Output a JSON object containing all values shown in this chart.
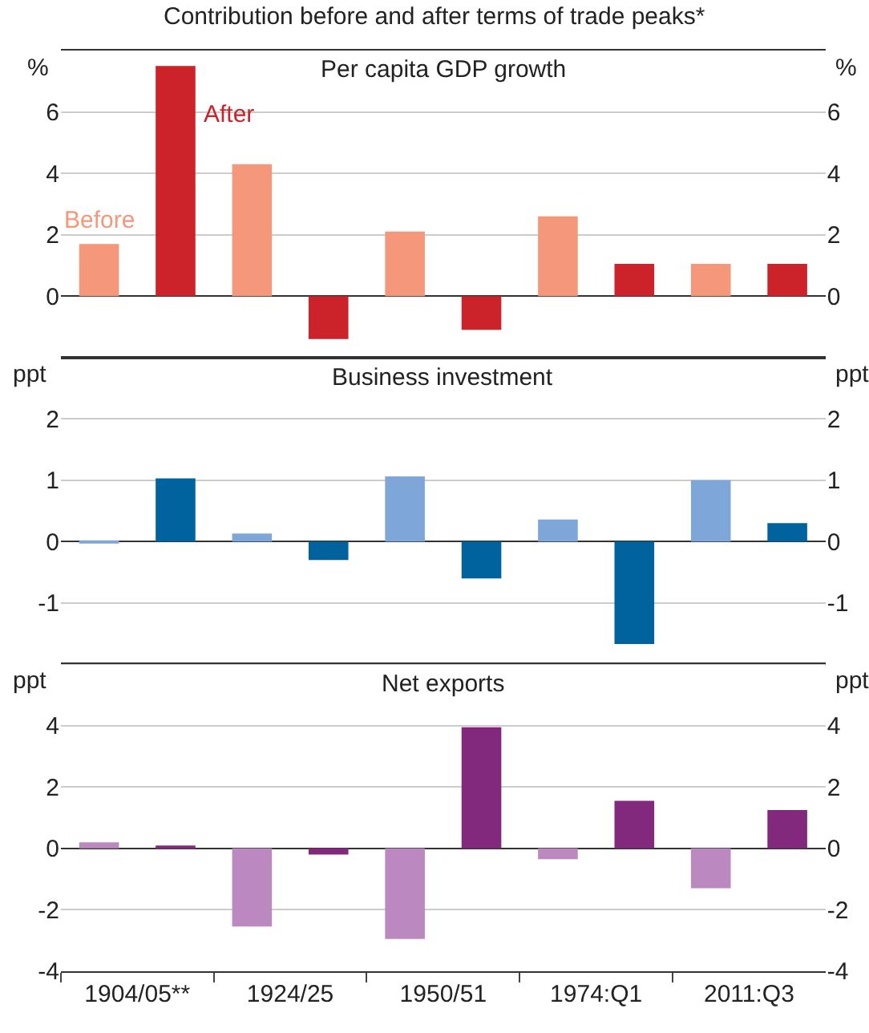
{
  "chart_data": [
    {
      "type": "bar",
      "subtitle": "Contribution before and after terms of trade peaks*",
      "title": "Per capita GDP growth",
      "ylabel": "%",
      "y2label": "%",
      "categories": [
        null,
        null,
        null,
        null,
        null
      ],
      "series": [
        {
          "name": "Before",
          "color": "#f4977a",
          "values": [
            1.7,
            4.3,
            2.1,
            2.6,
            1.05
          ]
        },
        {
          "name": "After",
          "color": "#cc2229",
          "values": [
            7.5,
            -1.4,
            -1.1,
            1.05,
            1.05
          ]
        }
      ],
      "ylim": [
        -2,
        8
      ],
      "yticks": [
        0,
        2,
        4,
        6
      ],
      "y2lim": [
        -2,
        8
      ],
      "y2ticks": [
        0,
        2,
        4,
        6
      ],
      "grid": "y",
      "tick_labels": "y"
    },
    {
      "type": "bar",
      "title": "Business investment",
      "ylabel": "ppt",
      "y2label": "ppt",
      "categories": [
        null,
        null,
        null,
        null,
        null
      ],
      "series": [
        {
          "color": "#7ea6d8",
          "values": [
            -0.03,
            0.13,
            1.06,
            0.36,
            1.0
          ]
        },
        {
          "color": "#00639e",
          "values": [
            1.03,
            -0.3,
            -0.6,
            -1.67,
            0.3
          ]
        }
      ],
      "ylim": [
        -2,
        3
      ],
      "yticks": [
        -1,
        0,
        1,
        2
      ],
      "y2lim": [
        -2,
        3
      ],
      "y2ticks": [
        -1,
        0,
        1,
        2
      ],
      "grid": "y",
      "tick_labels": "y"
    },
    {
      "type": "bar",
      "title": "Net exports",
      "ylabel": "ppt",
      "y2label": "ppt",
      "categories": [
        "1904/05**",
        "1924/25",
        "1950/51",
        "1974:Q1",
        "2011:Q3"
      ],
      "series": [
        {
          "color": "#bb88c0",
          "values": [
            0.2,
            -2.55,
            -2.95,
            -0.35,
            -1.3
          ]
        },
        {
          "color": "#82297d",
          "values": [
            0.05,
            -0.2,
            3.95,
            1.55,
            1.25
          ]
        }
      ],
      "ylim": [
        -4,
        6
      ],
      "yticks": [
        -4,
        -2,
        0,
        2,
        4
      ],
      "y2lim": [
        -4,
        6
      ],
      "y2ticks": [
        -4,
        -2,
        0,
        2,
        4
      ],
      "grid": "y"
    }
  ]
}
